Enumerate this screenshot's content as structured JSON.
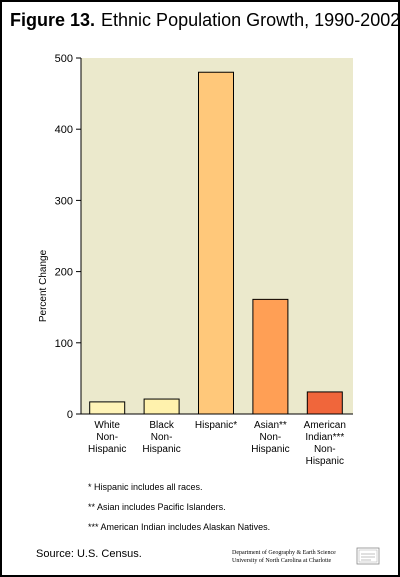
{
  "title": {
    "label": "Figure 13.",
    "text": "Ethnic Population Growth, 1990-2002"
  },
  "chart_data": {
    "type": "bar",
    "title": "Ethnic Population Growth, 1990-2002",
    "ylabel": "Percent Change",
    "xlabel": "",
    "ylim": [
      0,
      500
    ],
    "yticks": [
      "0",
      "100",
      "200",
      "300",
      "400",
      "500"
    ],
    "grid": false,
    "categories": [
      [
        "White",
        "Non-",
        "Hispanic"
      ],
      [
        "Black",
        "Non-",
        "Hispanic"
      ],
      [
        "Hispanic*"
      ],
      [
        "Asian**",
        "Non-",
        "Hispanic"
      ],
      [
        "American",
        "Indian***",
        "Non-",
        "Hispanic"
      ]
    ],
    "values": [
      17,
      21,
      480,
      161,
      31
    ],
    "colors": [
      "#fff4b8",
      "#fff2ad",
      "#ffc87a",
      "#ff9f55",
      "#f0663b"
    ],
    "plot_background": "#ebe9cc"
  },
  "footnotes": [
    "* Hispanic includes all races.",
    "** Asian includes Pacific Islanders.",
    "*** American Indian includes Alaskan Natives."
  ],
  "source": "Source: U.S. Census.",
  "credit": [
    "Department of Geography & Earth Science",
    "University of North Carolina at Charlotte"
  ],
  "seal_icon": "university-seal-icon"
}
